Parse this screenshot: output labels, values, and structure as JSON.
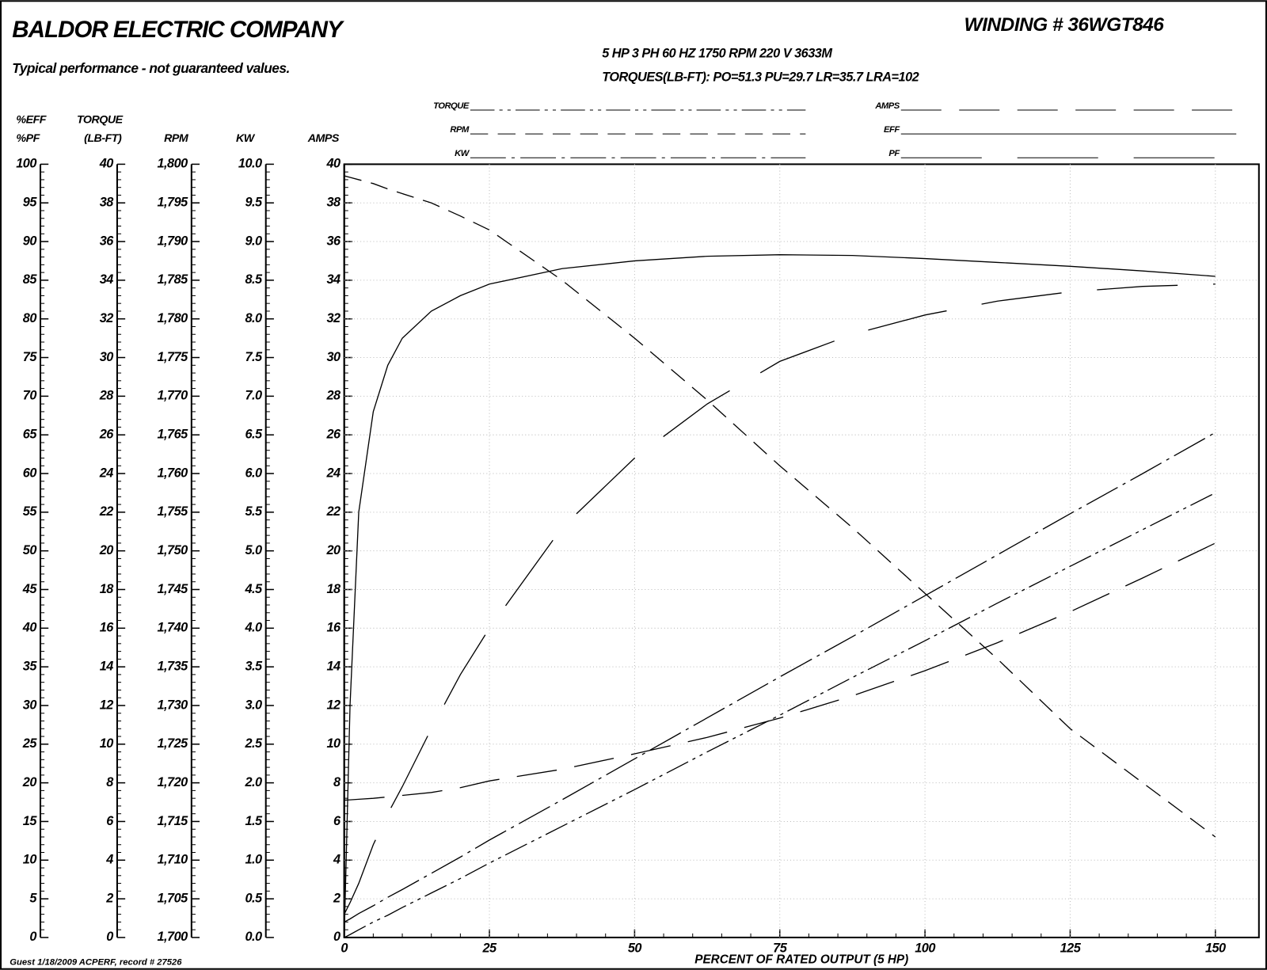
{
  "header": {
    "company": "BALDOR ELECTRIC COMPANY",
    "subtitle": "Typical performance - not guaranteed values.",
    "winding": "WINDING # 36WGT846",
    "specs": "5 HP  3 PH  60 HZ  1750 RPM  220 V  3633M",
    "torques": "TORQUES(LB-FT): PO=51.3  PU=29.7  LR=35.7  LRA=102"
  },
  "footer": "Guest 1/18/2009 ACPERF, record # 27526",
  "chart_data": {
    "type": "line",
    "xlabel": "PERCENT OF RATED OUTPUT (5 HP)",
    "x": [
      0,
      1,
      2.5,
      5,
      7.5,
      10,
      15,
      20,
      25,
      37.5,
      50,
      62.5,
      75,
      87.5,
      100,
      112.5,
      125,
      137.5,
      150
    ],
    "xlim": [
      0,
      157.5
    ],
    "xticks": [
      0,
      25,
      50,
      75,
      100,
      125,
      150
    ],
    "grid": true,
    "minor_divisions": 5,
    "axes": [
      {
        "id": "eff",
        "label": [
          "%EFF",
          "%PF"
        ],
        "ylim": [
          0,
          100
        ],
        "yticks": [
          0,
          5,
          10,
          15,
          20,
          25,
          30,
          35,
          40,
          45,
          50,
          55,
          60,
          65,
          70,
          75,
          80,
          85,
          90,
          95,
          100
        ]
      },
      {
        "id": "torque",
        "label": [
          "TORQUE",
          "(LB-FT)"
        ],
        "ylim": [
          0,
          40
        ],
        "yticks": [
          0,
          2,
          4,
          6,
          8,
          10,
          12,
          14,
          16,
          18,
          20,
          22,
          24,
          26,
          28,
          30,
          32,
          34,
          36,
          38,
          40
        ]
      },
      {
        "id": "rpm",
        "label": [
          "RPM"
        ],
        "ylim": [
          1700,
          1800
        ],
        "yticks": [
          {
            "value": 1700,
            "label": "1,700"
          },
          {
            "value": 1705,
            "label": "1,705"
          },
          {
            "value": 1710,
            "label": "1,710"
          },
          {
            "value": 1715,
            "label": "1,715"
          },
          {
            "value": 1720,
            "label": "1,720"
          },
          {
            "value": 1725,
            "label": "1,725"
          },
          {
            "value": 1730,
            "label": "1,730"
          },
          {
            "value": 1735,
            "label": "1,735"
          },
          {
            "value": 1740,
            "label": "1,740"
          },
          {
            "value": 1745,
            "label": "1,745"
          },
          {
            "value": 1750,
            "label": "1,750"
          },
          {
            "value": 1755,
            "label": "1,755"
          },
          {
            "value": 1760,
            "label": "1,760"
          },
          {
            "value": 1765,
            "label": "1,765"
          },
          {
            "value": 1770,
            "label": "1,770"
          },
          {
            "value": 1775,
            "label": "1,775"
          },
          {
            "value": 1780,
            "label": "1,780"
          },
          {
            "value": 1785,
            "label": "1,785"
          },
          {
            "value": 1790,
            "label": "1,790"
          },
          {
            "value": 1795,
            "label": "1,795"
          },
          {
            "value": 1800,
            "label": "1,800"
          }
        ]
      },
      {
        "id": "kw",
        "label": [
          "KW"
        ],
        "ylim": [
          0,
          10
        ],
        "yticks": [
          {
            "value": 0,
            "label": "0.0"
          },
          0.5,
          {
            "value": 1,
            "label": "1.0"
          },
          1.5,
          {
            "value": 2,
            "label": "2.0"
          },
          2.5,
          {
            "value": 3,
            "label": "3.0"
          },
          3.5,
          {
            "value": 4,
            "label": "4.0"
          },
          4.5,
          {
            "value": 5,
            "label": "5.0"
          },
          5.5,
          {
            "value": 6,
            "label": "6.0"
          },
          6.5,
          {
            "value": 7,
            "label": "7.0"
          },
          7.5,
          {
            "value": 8,
            "label": "8.0"
          },
          8.5,
          {
            "value": 9,
            "label": "9.0"
          },
          9.5,
          {
            "value": 10,
            "label": "10.0"
          }
        ]
      },
      {
        "id": "amps",
        "label": [
          "AMPS"
        ],
        "ylim": [
          0,
          40
        ],
        "yticks": [
          0,
          2,
          4,
          6,
          8,
          10,
          12,
          14,
          16,
          18,
          20,
          22,
          24,
          26,
          28,
          30,
          32,
          34,
          36,
          38,
          40
        ]
      }
    ],
    "series": [
      {
        "name": "TORQUE",
        "axis": "torque",
        "color": "#000000",
        "dash": [
          30,
          6,
          4,
          6,
          4,
          6
        ],
        "values": [
          0,
          0.15,
          0.4,
          0.8,
          1.15,
          1.55,
          2.3,
          3.05,
          3.85,
          5.75,
          7.65,
          9.6,
          11.5,
          13.45,
          15.35,
          17.3,
          19.2,
          21.1,
          23.0
        ]
      },
      {
        "name": "RPM",
        "axis": "rpm",
        "color": "#000000",
        "dash": [
          22,
          12
        ],
        "values": [
          1798.5,
          1798.3,
          1798,
          1797.5,
          1796.8,
          1796.2,
          1795,
          1793.3,
          1791.5,
          1785,
          1777.5,
          1769.5,
          1761,
          1753,
          1744.5,
          1736,
          1727,
          1720,
          1713
        ]
      },
      {
        "name": "KW",
        "axis": "kw",
        "color": "#000000",
        "dash": [
          44,
          7,
          4,
          7
        ],
        "values": [
          0.2,
          0.24,
          0.31,
          0.41,
          0.52,
          0.62,
          0.83,
          1.04,
          1.26,
          1.78,
          2.31,
          2.84,
          3.37,
          3.89,
          4.42,
          4.95,
          5.48,
          6.0,
          6.53
        ]
      },
      {
        "name": "AMPS",
        "axis": "amps",
        "color": "#000000",
        "dash": [
          50,
          22
        ],
        "values": [
          7.1,
          7.12,
          7.15,
          7.2,
          7.27,
          7.35,
          7.5,
          7.75,
          8.1,
          8.7,
          9.5,
          10.35,
          11.35,
          12.5,
          13.8,
          15.25,
          16.85,
          18.6,
          20.4
        ]
      },
      {
        "name": "EFF",
        "axis": "eff",
        "color": "#000000",
        "dash": null,
        "values": [
          0,
          30,
          55,
          68,
          74,
          77.5,
          81,
          83,
          84.5,
          86.5,
          87.5,
          88.1,
          88.3,
          88.2,
          87.8,
          87.3,
          86.8,
          86.2,
          85.5
        ]
      },
      {
        "name": "PF",
        "axis": "eff",
        "color": "#000000",
        "dash": [
          100,
          44
        ],
        "values": [
          3,
          4.5,
          7,
          12,
          16,
          19.5,
          27,
          34,
          40,
          53,
          62,
          69,
          74.5,
          78,
          80.5,
          82.3,
          83.5,
          84.2,
          84.5
        ]
      }
    ]
  }
}
